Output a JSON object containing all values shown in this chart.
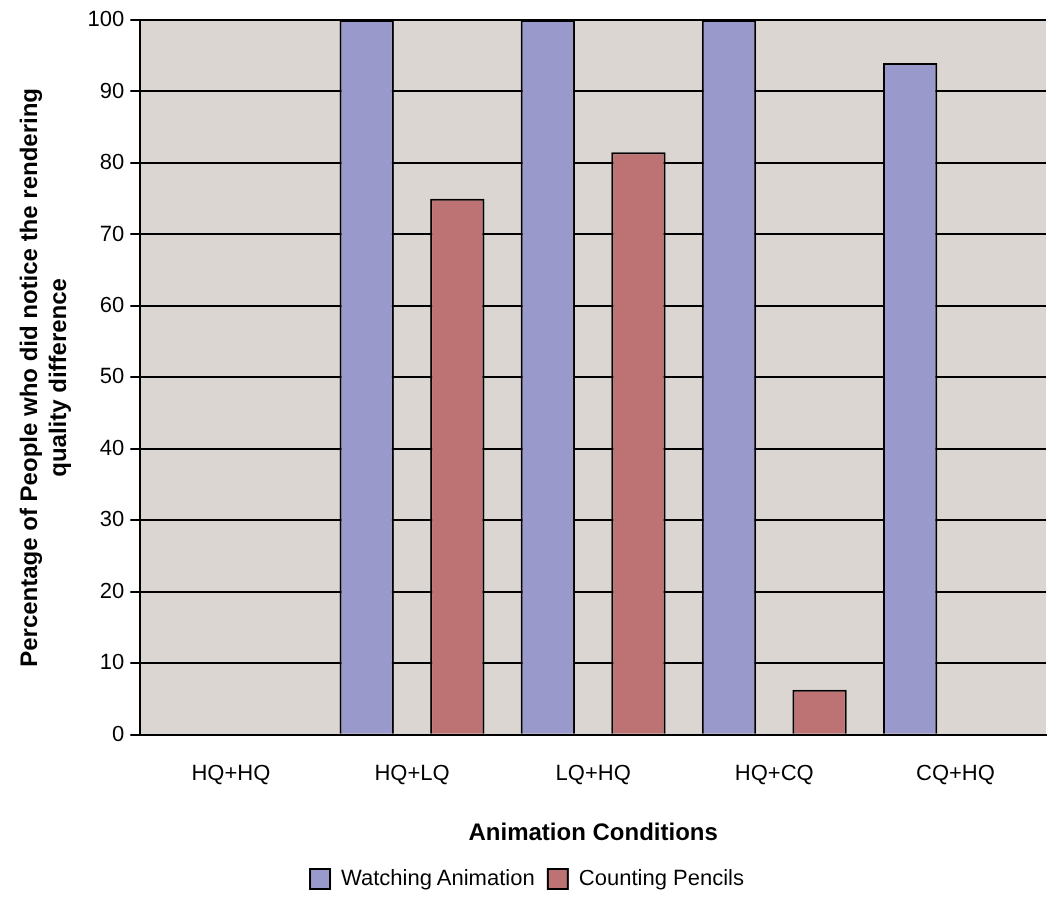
{
  "chart_data": {
    "type": "bar",
    "xlabel": "Animation Conditions",
    "ylabel": "Percentage of People who did notice the rendering quality difference",
    "categories": [
      "HQ+HQ",
      "HQ+LQ",
      "LQ+HQ",
      "HQ+CQ",
      "CQ+HQ"
    ],
    "series": [
      {
        "name": "Watching Animation",
        "color": "#9999cc",
        "values": [
          0,
          100,
          100,
          100,
          94
        ]
      },
      {
        "name": "Counting Pencils",
        "color": "#bd7274",
        "values": [
          0,
          75,
          81.5,
          6.3,
          0
        ]
      }
    ],
    "ylim": [
      0,
      100
    ],
    "yticks": [
      0,
      10,
      20,
      30,
      40,
      50,
      60,
      70,
      80,
      90,
      100
    ],
    "grid": "y",
    "legend": "bottom"
  }
}
